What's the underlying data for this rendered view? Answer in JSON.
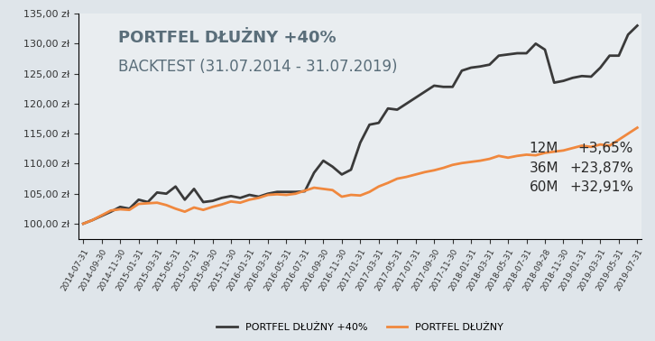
{
  "chart_data": {
    "type": "line",
    "title": "PORTFEL DŁUŻNY +40%",
    "subtitle": "BACKTEST (31.07.2014 - 31.07.2019)",
    "categories": [
      "2014-07-31",
      null,
      "2014-09-30",
      null,
      "2014-11-30",
      null,
      "2015-01-31",
      null,
      "2015-03-31",
      null,
      "2015-05-31",
      null,
      "2015-07-31",
      null,
      "2015-09-30",
      null,
      "2015-11-30",
      null,
      "2016-01-31",
      null,
      "2016-03-31",
      null,
      "2016-05-31",
      null,
      "2016-07-31",
      null,
      "2016-09-30",
      null,
      "2016-11-30",
      null,
      "2017-01-31",
      null,
      "2017-03-31",
      null,
      "2017-05-31",
      null,
      "2017-07-31",
      null,
      "2017-09-30",
      null,
      "2017-11-30",
      null,
      "2018-01-31",
      null,
      "2018-03-31",
      null,
      "2018-05-31",
      null,
      "2018-07-31",
      null,
      "2018-09-28",
      null,
      "2018-11-30",
      null,
      "2019-01-31",
      null,
      "2019-03-31",
      null,
      "2019-05-31",
      null,
      "2019-07-31"
    ],
    "series": [
      {
        "name": "PORTFEL DŁUŻNY +40%",
        "color": "#3a3a3a",
        "values": [
          100.0,
          100.6,
          101.3,
          102.0,
          102.8,
          102.5,
          104.0,
          103.6,
          105.2,
          105.0,
          106.2,
          104.0,
          105.8,
          103.6,
          103.8,
          104.3,
          104.6,
          104.3,
          104.8,
          104.5,
          105.0,
          105.3,
          105.3,
          105.3,
          105.4,
          108.5,
          110.5,
          109.5,
          108.2,
          109.0,
          113.5,
          116.5,
          116.8,
          119.2,
          119.0,
          120.0,
          121.0,
          122.0,
          123.0,
          122.8,
          122.8,
          125.5,
          126.0,
          126.2,
          126.5,
          128.0,
          128.2,
          128.4,
          128.4,
          130.0,
          129.0,
          123.5,
          123.8,
          124.3,
          124.6,
          124.5,
          126.0,
          128.0,
          128.0,
          131.5,
          133.0
        ]
      },
      {
        "name": "PORTFEL DŁUŻNY",
        "color": "#f0883e",
        "values": [
          100.0,
          100.6,
          101.4,
          102.2,
          102.4,
          102.3,
          103.3,
          103.4,
          103.5,
          103.1,
          102.5,
          102.0,
          102.7,
          102.3,
          102.8,
          103.2,
          103.7,
          103.5,
          104.0,
          104.3,
          104.8,
          104.9,
          104.8,
          105.0,
          105.5,
          106.0,
          105.8,
          105.6,
          104.5,
          104.8,
          104.7,
          105.3,
          106.2,
          106.8,
          107.5,
          107.8,
          108.2,
          108.6,
          108.9,
          109.3,
          109.8,
          110.1,
          110.3,
          110.5,
          110.8,
          111.3,
          111.0,
          111.3,
          111.5,
          111.4,
          111.8,
          112.0,
          112.2,
          112.6,
          113.0,
          112.8,
          113.2,
          113.0,
          114.0,
          115.0,
          116.0
        ]
      }
    ],
    "ylim": [
      97.5,
      135
    ],
    "yticks": [
      {
        "value": 100,
        "label": "100,00 zł"
      },
      {
        "value": 105,
        "label": "105,00 zł"
      },
      {
        "value": 110,
        "label": "110,00 zł"
      },
      {
        "value": 115,
        "label": "115,00 zł"
      },
      {
        "value": 120,
        "label": "120,00 zł"
      },
      {
        "value": 125,
        "label": "125,00 zł"
      },
      {
        "value": 130,
        "label": "130,00 zł"
      },
      {
        "value": 135,
        "label": "135,00 zł"
      }
    ],
    "returns": [
      {
        "period": "12M",
        "text": "+3,65%"
      },
      {
        "period": "36M",
        "text": "+23,87%"
      },
      {
        "period": "60M",
        "text": "+32,91%"
      }
    ],
    "legend": "lower center",
    "grid": false
  }
}
